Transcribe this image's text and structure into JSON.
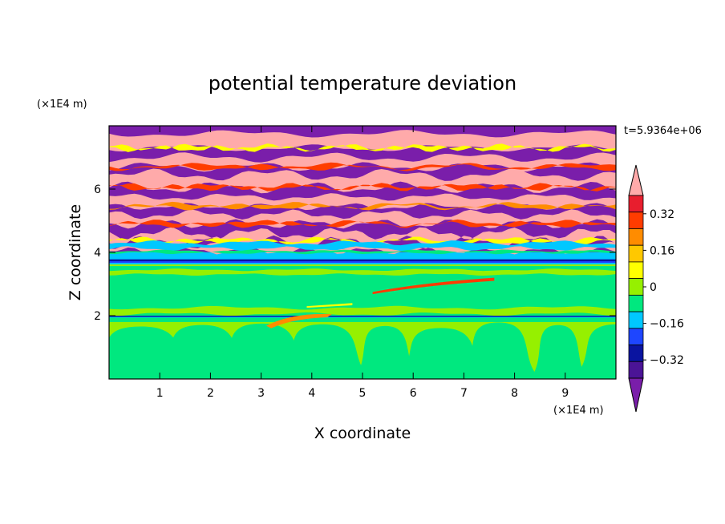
{
  "chart_data": {
    "type": "heatmap",
    "title": "potential temperature deviation",
    "xlabel": "X coordinate",
    "ylabel": "Z coordinate",
    "x_unit": "(×1E4 m)",
    "y_unit": "(×1E4 m)",
    "time_label": "t=5.9364e+06",
    "xlim": [
      0,
      10
    ],
    "ylim": [
      0,
      8
    ],
    "x_ticks": [
      1,
      2,
      3,
      4,
      5,
      6,
      7,
      8,
      9
    ],
    "y_ticks": [
      2,
      4,
      6
    ],
    "colorbar": {
      "levels": [
        -0.48,
        -0.4,
        -0.32,
        -0.24,
        -0.16,
        -0.08,
        0,
        0.08,
        0.16,
        0.24,
        0.32,
        0.4,
        0.48
      ],
      "tick_labels": [
        "0.32",
        "0.16",
        "0",
        "−0.16",
        "−0.32"
      ],
      "tick_values": [
        0.32,
        0.16,
        0,
        -0.16,
        -0.32
      ],
      "colors": [
        "#7a1eaa",
        "#4b1496",
        "#0a14a0",
        "#1e46ff",
        "#00c8ff",
        "#00e87f",
        "#96f000",
        "#ffff00",
        "#ffc800",
        "#ff8c00",
        "#ff3c00",
        "#e81e2e",
        "#ffaaaa"
      ],
      "extend": "both"
    },
    "bands": [
      {
        "z_from": 0.0,
        "z_to": 1.8,
        "pattern": "green plumes",
        "value": 0.0
      },
      {
        "z_from": 1.8,
        "z_to": 3.6,
        "pattern": "uniform",
        "value": -0.04
      },
      {
        "z_from": 3.6,
        "z_to": 4.0,
        "pattern": "strong gradient",
        "value": -0.3
      },
      {
        "z_from": 4.0,
        "z_to": 8.0,
        "pattern": "alternating layers",
        "value": 0.5
      }
    ]
  }
}
